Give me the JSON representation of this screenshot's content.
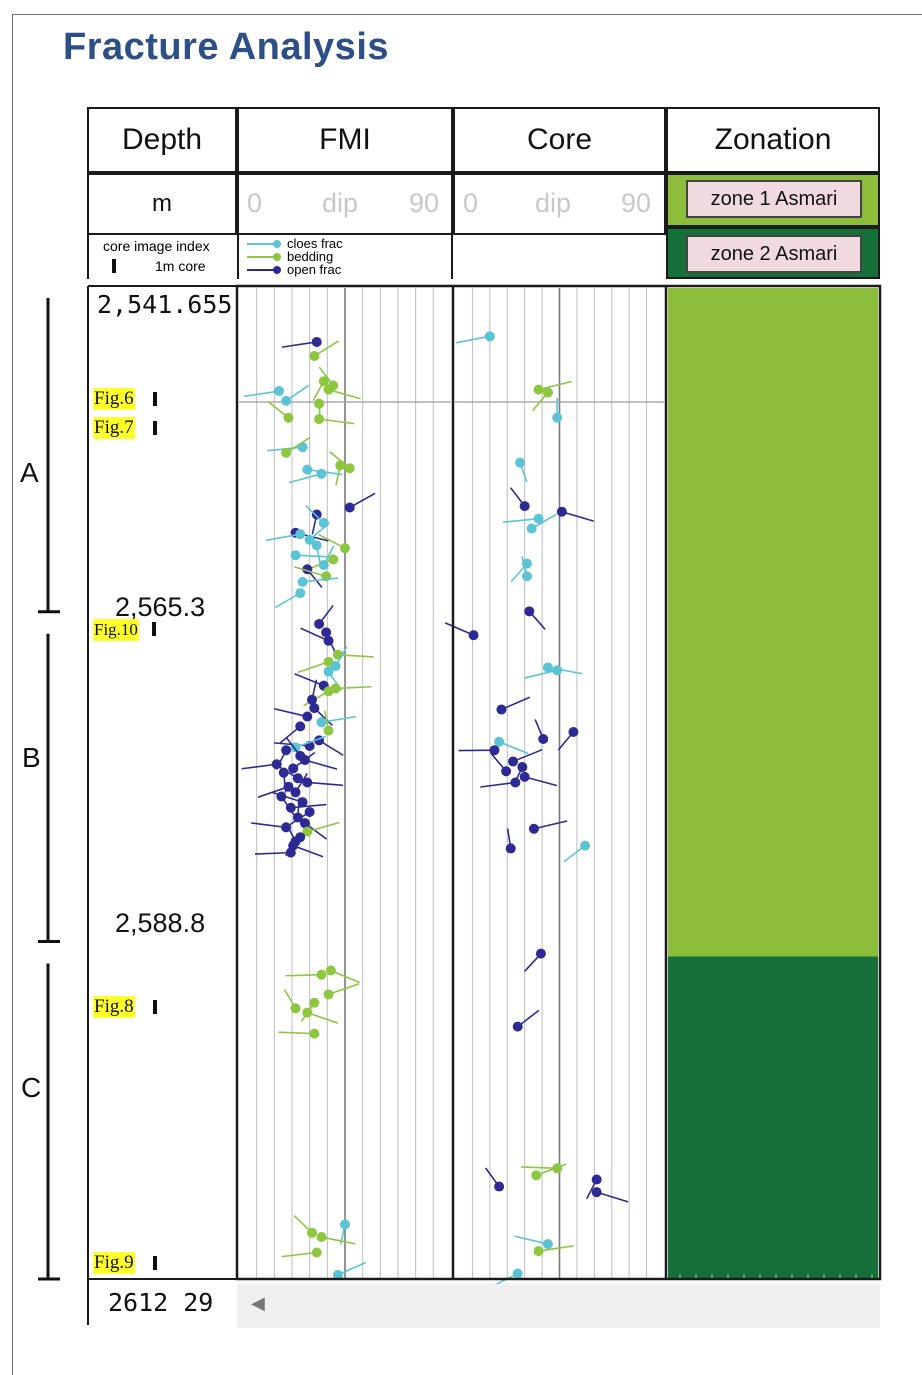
{
  "title": "Fracture Analysis",
  "headers": {
    "depth": "Depth",
    "fmi": "FMI",
    "core": "Core",
    "zonation": "Zonation"
  },
  "units": {
    "depth": "m"
  },
  "dip_scale": {
    "min": "0",
    "label": "dip",
    "max": "90"
  },
  "core_index": {
    "line1": "core image index",
    "line2": "1m core"
  },
  "legend": [
    {
      "label": "cloes frac",
      "color": "#5bc4d4"
    },
    {
      "label": "bedding",
      "color": "#8dc63f"
    },
    {
      "label": "open frac",
      "color": "#2e2a94"
    }
  ],
  "zones": [
    {
      "label": "zone 1 Asmari",
      "color": "#8cbe3c",
      "top_depth": 2541.655,
      "bottom_depth": 2589.3
    },
    {
      "label": "zone 2 Asmari",
      "color": "#16703a",
      "top_depth": 2589.3,
      "bottom_depth": 2612.29
    }
  ],
  "depth_labels": {
    "top": "2,541.655",
    "mid1": "2,565.3",
    "mid2": "2,588.8",
    "bottom": "2612 29"
  },
  "depth_range": [
    2541.655,
    2612.29
  ],
  "segments": [
    {
      "label": "A",
      "top_depth": 2541.655,
      "bottom_depth": 2565.3
    },
    {
      "label": "B",
      "top_depth": 2565.3,
      "bottom_depth": 2588.8
    },
    {
      "label": "C",
      "top_depth": 2588.8,
      "bottom_depth": 2612.29
    }
  ],
  "figures": [
    {
      "label": "Fig.6",
      "depth": 2549.6
    },
    {
      "label": "Fig.7",
      "depth": 2551.7
    },
    {
      "label": "Fig.10",
      "depth": 2567.0
    },
    {
      "label": "Fig.8",
      "depth": 2594.3
    },
    {
      "label": "Fig.9",
      "depth": 2611.2
    }
  ],
  "chart_data": {
    "type": "scatter",
    "xlim": [
      0,
      90
    ],
    "fmi": [
      {
        "type": "open",
        "depth": 2545.5,
        "dip": 33
      },
      {
        "type": "bedding",
        "depth": 2546.5,
        "dip": 32
      },
      {
        "type": "bedding",
        "depth": 2548.3,
        "dip": 36
      },
      {
        "type": "bedding",
        "depth": 2548.6,
        "dip": 40
      },
      {
        "type": "bedding",
        "depth": 2548.9,
        "dip": 38
      },
      {
        "type": "closed",
        "depth": 2549.0,
        "dip": 17
      },
      {
        "type": "closed",
        "depth": 2549.7,
        "dip": 20
      },
      {
        "type": "bedding",
        "depth": 2549.9,
        "dip": 34
      },
      {
        "type": "bedding",
        "depth": 2550.9,
        "dip": 21
      },
      {
        "type": "bedding",
        "depth": 2551.0,
        "dip": 34
      },
      {
        "type": "closed",
        "depth": 2553.0,
        "dip": 27
      },
      {
        "type": "bedding",
        "depth": 2553.4,
        "dip": 20
      },
      {
        "type": "bedding",
        "depth": 2554.3,
        "dip": 43
      },
      {
        "type": "bedding",
        "depth": 2554.5,
        "dip": 47
      },
      {
        "type": "closed",
        "depth": 2554.6,
        "dip": 29
      },
      {
        "type": "closed",
        "depth": 2554.9,
        "dip": 35
      },
      {
        "type": "open",
        "depth": 2557.3,
        "dip": 47
      },
      {
        "type": "open",
        "depth": 2557.8,
        "dip": 33
      },
      {
        "type": "closed",
        "depth": 2558.4,
        "dip": 36
      },
      {
        "type": "open",
        "depth": 2559.1,
        "dip": 24
      },
      {
        "type": "closed",
        "depth": 2559.2,
        "dip": 26
      },
      {
        "type": "closed",
        "depth": 2559.6,
        "dip": 30
      },
      {
        "type": "closed",
        "depth": 2560.0,
        "dip": 33
      },
      {
        "type": "bedding",
        "depth": 2560.2,
        "dip": 45
      },
      {
        "type": "closed",
        "depth": 2560.7,
        "dip": 24
      },
      {
        "type": "bedding",
        "depth": 2561.0,
        "dip": 40
      },
      {
        "type": "closed",
        "depth": 2561.4,
        "dip": 36
      },
      {
        "type": "open",
        "depth": 2561.7,
        "dip": 29
      },
      {
        "type": "bedding",
        "depth": 2562.2,
        "dip": 37
      },
      {
        "type": "closed",
        "depth": 2562.6,
        "dip": 27
      },
      {
        "type": "closed",
        "depth": 2563.4,
        "dip": 26
      },
      {
        "type": "open",
        "depth": 2565.6,
        "dip": 34
      },
      {
        "type": "open",
        "depth": 2566.2,
        "dip": 37
      },
      {
        "type": "open",
        "depth": 2566.8,
        "dip": 38
      },
      {
        "type": "bedding",
        "depth": 2567.8,
        "dip": 42
      },
      {
        "type": "bedding",
        "depth": 2568.3,
        "dip": 38
      },
      {
        "type": "closed",
        "depth": 2568.6,
        "dip": 41
      },
      {
        "type": "closed",
        "depth": 2569.0,
        "dip": 38
      },
      {
        "type": "open",
        "depth": 2570.0,
        "dip": 36
      },
      {
        "type": "bedding",
        "depth": 2570.2,
        "dip": 41
      },
      {
        "type": "bedding",
        "depth": 2570.4,
        "dip": 38
      },
      {
        "type": "open",
        "depth": 2571.0,
        "dip": 31
      },
      {
        "type": "open",
        "depth": 2571.6,
        "dip": 32
      },
      {
        "type": "open",
        "depth": 2572.2,
        "dip": 29
      },
      {
        "type": "closed",
        "depth": 2572.6,
        "dip": 35
      },
      {
        "type": "open",
        "depth": 2572.9,
        "dip": 26
      },
      {
        "type": "bedding",
        "depth": 2573.2,
        "dip": 38
      },
      {
        "type": "open",
        "depth": 2573.9,
        "dip": 34
      },
      {
        "type": "open",
        "depth": 2574.3,
        "dip": 30
      },
      {
        "type": "closed",
        "depth": 2574.4,
        "dip": 24
      },
      {
        "type": "open",
        "depth": 2574.6,
        "dip": 20
      },
      {
        "type": "open",
        "depth": 2575.0,
        "dip": 26
      },
      {
        "type": "open",
        "depth": 2575.3,
        "dip": 28
      },
      {
        "type": "open",
        "depth": 2575.6,
        "dip": 16
      },
      {
        "type": "open",
        "depth": 2575.9,
        "dip": 23
      },
      {
        "type": "open",
        "depth": 2576.2,
        "dip": 19
      },
      {
        "type": "open",
        "depth": 2576.6,
        "dip": 25
      },
      {
        "type": "open",
        "depth": 2576.9,
        "dip": 29
      },
      {
        "type": "open",
        "depth": 2577.2,
        "dip": 21
      },
      {
        "type": "open",
        "depth": 2577.6,
        "dip": 24
      },
      {
        "type": "open",
        "depth": 2577.9,
        "dip": 18
      },
      {
        "type": "open",
        "depth": 2578.3,
        "dip": 27
      },
      {
        "type": "open",
        "depth": 2578.7,
        "dip": 22
      },
      {
        "type": "open",
        "depth": 2579.0,
        "dip": 30
      },
      {
        "type": "open",
        "depth": 2579.4,
        "dip": 25
      },
      {
        "type": "open",
        "depth": 2579.8,
        "dip": 28
      },
      {
        "type": "open",
        "depth": 2580.1,
        "dip": 20
      },
      {
        "type": "bedding",
        "depth": 2580.4,
        "dip": 29
      },
      {
        "type": "open",
        "depth": 2580.8,
        "dip": 26
      },
      {
        "type": "open",
        "depth": 2581.1,
        "dip": 24
      },
      {
        "type": "open",
        "depth": 2581.4,
        "dip": 23
      },
      {
        "type": "open",
        "depth": 2581.9,
        "dip": 22
      },
      {
        "type": "bedding",
        "depth": 2590.3,
        "dip": 39
      },
      {
        "type": "bedding",
        "depth": 2590.6,
        "dip": 35
      },
      {
        "type": "bedding",
        "depth": 2592.0,
        "dip": 38
      },
      {
        "type": "bedding",
        "depth": 2592.6,
        "dip": 32
      },
      {
        "type": "bedding",
        "depth": 2593.0,
        "dip": 24
      },
      {
        "type": "bedding",
        "depth": 2593.3,
        "dip": 29
      },
      {
        "type": "bedding",
        "depth": 2594.8,
        "dip": 32
      },
      {
        "type": "closed",
        "depth": 2608.4,
        "dip": 45
      },
      {
        "type": "bedding",
        "depth": 2609.0,
        "dip": 31
      },
      {
        "type": "bedding",
        "depth": 2609.3,
        "dip": 35
      },
      {
        "type": "bedding",
        "depth": 2610.4,
        "dip": 33
      },
      {
        "type": "closed",
        "depth": 2612.0,
        "dip": 42
      }
    ],
    "core": [
      {
        "type": "closed",
        "depth": 2545.1,
        "dip": 15
      },
      {
        "type": "bedding",
        "depth": 2548.9,
        "dip": 36
      },
      {
        "type": "bedding",
        "depth": 2549.1,
        "dip": 40
      },
      {
        "type": "closed",
        "depth": 2550.9,
        "dip": 44
      },
      {
        "type": "closed",
        "depth": 2554.1,
        "dip": 28
      },
      {
        "type": "open",
        "depth": 2557.2,
        "dip": 30
      },
      {
        "type": "open",
        "depth": 2557.6,
        "dip": 46
      },
      {
        "type": "closed",
        "depth": 2558.1,
        "dip": 36
      },
      {
        "type": "closed",
        "depth": 2558.8,
        "dip": 33
      },
      {
        "type": "closed",
        "depth": 2561.3,
        "dip": 31
      },
      {
        "type": "closed",
        "depth": 2562.2,
        "dip": 31
      },
      {
        "type": "open",
        "depth": 2564.7,
        "dip": 32
      },
      {
        "type": "open",
        "depth": 2566.4,
        "dip": 8
      },
      {
        "type": "closed",
        "depth": 2568.7,
        "dip": 40
      },
      {
        "type": "closed",
        "depth": 2568.9,
        "dip": 44
      },
      {
        "type": "open",
        "depth": 2571.7,
        "dip": 20
      },
      {
        "type": "open",
        "depth": 2573.3,
        "dip": 51
      },
      {
        "type": "open",
        "depth": 2573.8,
        "dip": 38
      },
      {
        "type": "closed",
        "depth": 2574.0,
        "dip": 19
      },
      {
        "type": "open",
        "depth": 2574.6,
        "dip": 17
      },
      {
        "type": "open",
        "depth": 2575.4,
        "dip": 25
      },
      {
        "type": "open",
        "depth": 2575.8,
        "dip": 29
      },
      {
        "type": "open",
        "depth": 2576.1,
        "dip": 22
      },
      {
        "type": "open",
        "depth": 2576.5,
        "dip": 30
      },
      {
        "type": "open",
        "depth": 2576.9,
        "dip": 26
      },
      {
        "type": "open",
        "depth": 2580.2,
        "dip": 34
      },
      {
        "type": "closed",
        "depth": 2581.4,
        "dip": 56
      },
      {
        "type": "open",
        "depth": 2581.6,
        "dip": 24
      },
      {
        "type": "open",
        "depth": 2589.1,
        "dip": 37
      },
      {
        "type": "open",
        "depth": 2594.3,
        "dip": 27
      },
      {
        "type": "bedding",
        "depth": 2604.4,
        "dip": 44
      },
      {
        "type": "bedding",
        "depth": 2604.9,
        "dip": 35
      },
      {
        "type": "open",
        "depth": 2605.2,
        "dip": 61
      },
      {
        "type": "open",
        "depth": 2605.7,
        "dip": 19
      },
      {
        "type": "open",
        "depth": 2606.1,
        "dip": 61
      },
      {
        "type": "closed",
        "depth": 2609.8,
        "dip": 40
      },
      {
        "type": "bedding",
        "depth": 2610.3,
        "dip": 36
      },
      {
        "type": "closed",
        "depth": 2611.9,
        "dip": 27
      }
    ]
  }
}
